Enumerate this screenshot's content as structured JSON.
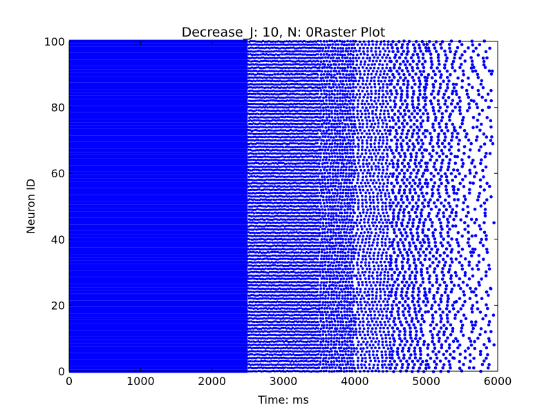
{
  "chart_data": {
    "type": "scatter",
    "title": "Decrease_J: 10, N: 0Raster Plot",
    "xlabel": "Time: ms",
    "ylabel": "Neuron ID",
    "xlim": [
      0,
      6000
    ],
    "ylim": [
      0,
      100
    ],
    "xticks": [
      "0",
      "1000",
      "2000",
      "3000",
      "4000",
      "5000",
      "6000"
    ],
    "yticks": [
      "0",
      "20",
      "40",
      "60",
      "80",
      "100"
    ],
    "grid": false,
    "marker_color": "#0000ff",
    "neurons": {
      "first_id": 0,
      "last_id": 100
    },
    "spike_trains": [
      {
        "time_range_ms": [
          0,
          2500
        ],
        "interspike_interval_ms": 10
      },
      {
        "time_range_ms": [
          2500,
          3500
        ],
        "interspike_interval_ms": 22
      },
      {
        "time_range_ms": [
          3500,
          4000
        ],
        "interspike_interval_ms": 38
      },
      {
        "time_range_ms": [
          4000,
          4500
        ],
        "interspike_interval_ms": 55
      },
      {
        "time_range_ms": [
          4500,
          5000
        ],
        "interspike_interval_ms": 80
      },
      {
        "time_range_ms": [
          5000,
          5400
        ],
        "interspike_interval_ms": 100
      },
      {
        "time_range_ms": [
          5400,
          5650
        ],
        "interspike_interval_ms": 150
      },
      {
        "time_range_ms": [
          5650,
          5900
        ],
        "interspike_interval_ms": 180
      }
    ],
    "last_spike_ms": 5950
  }
}
